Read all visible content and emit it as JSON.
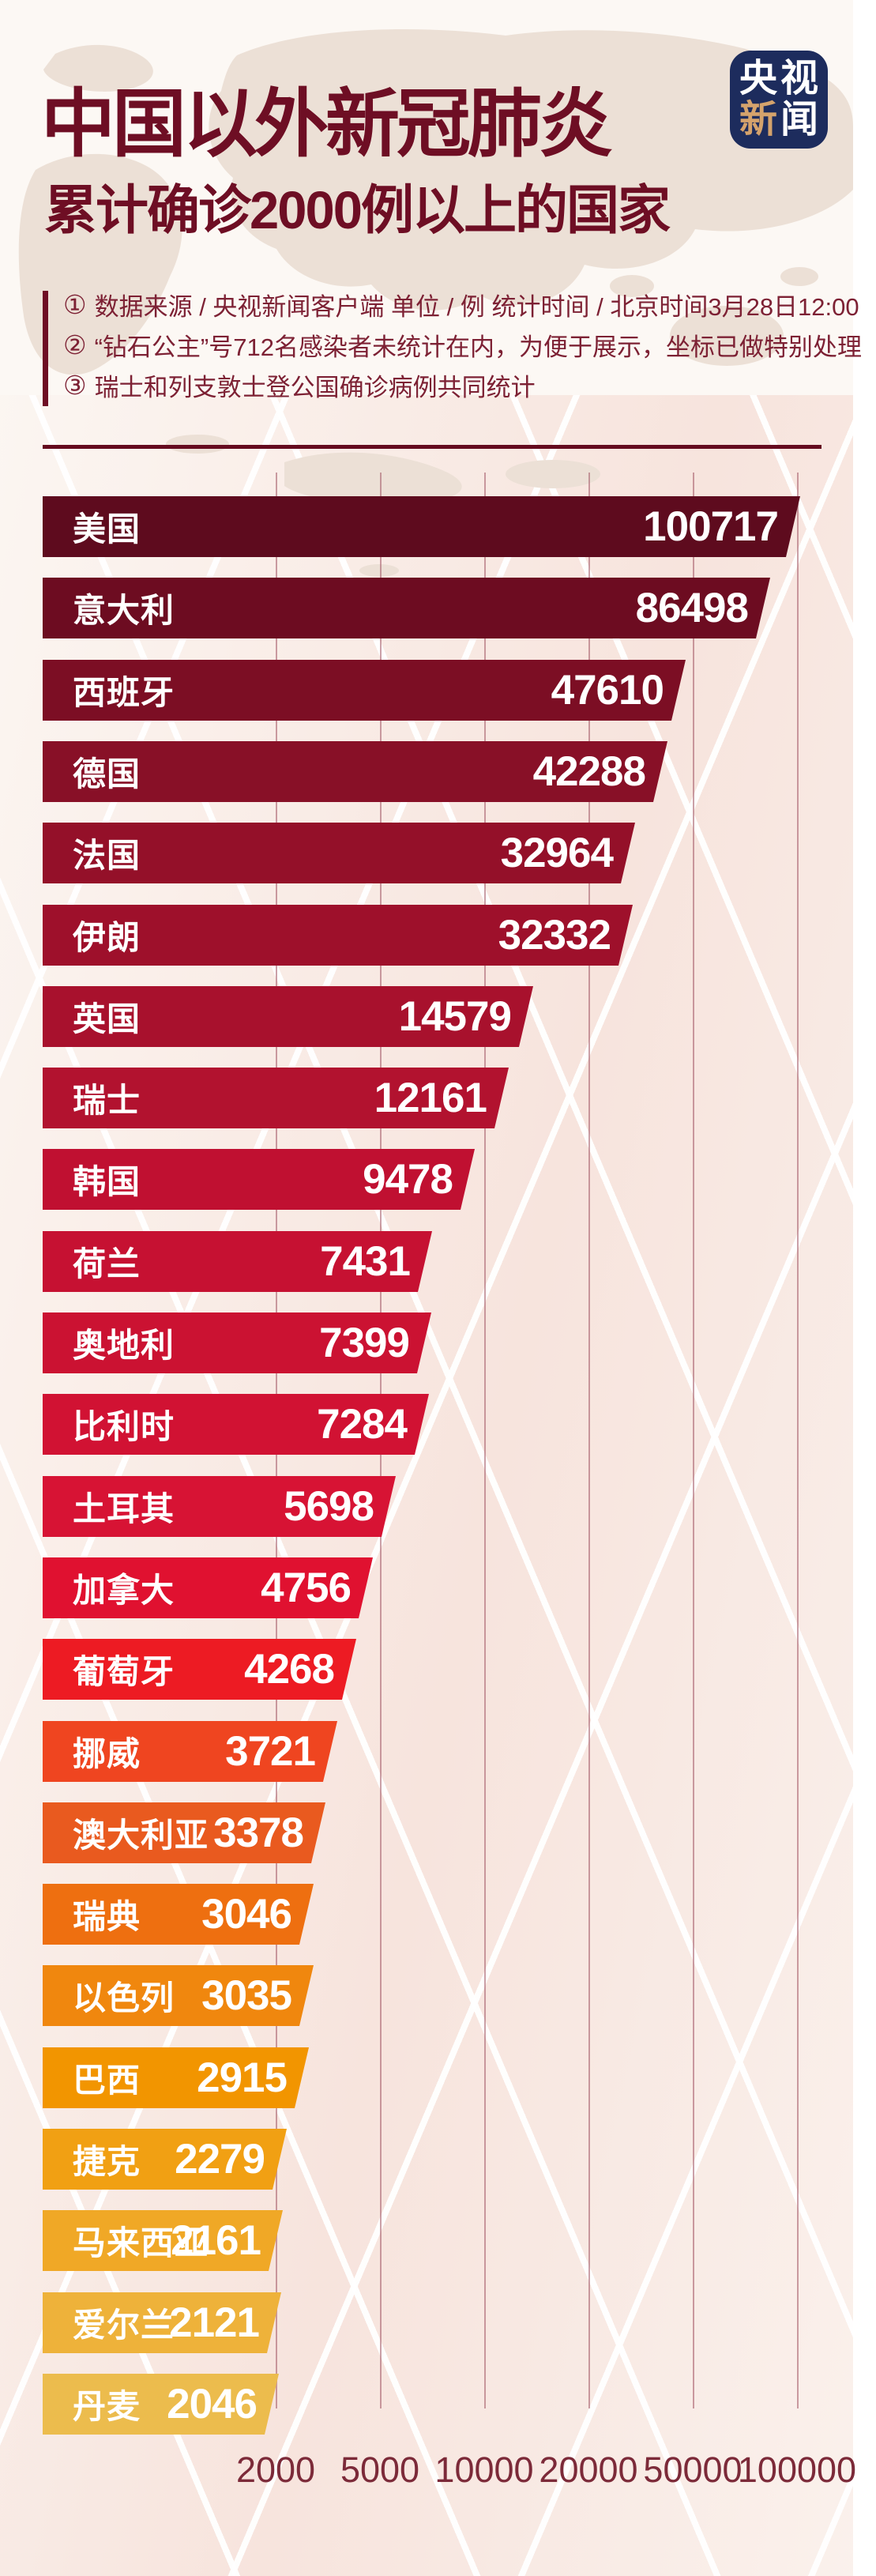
{
  "header": {
    "title_line1": "中国以外新冠肺炎",
    "title_line2": "累计确诊2000例以上的国家",
    "logo": {
      "name": "央视新闻",
      "chars": [
        "央",
        "视",
        "新",
        "闻"
      ],
      "accent_char_index": 2,
      "bg_color": "#1d2c5d",
      "accent_color": "#d5a36c"
    }
  },
  "notes": {
    "items": [
      {
        "marker": "①",
        "text": "数据来源 / 央视新闻客户端  单位 / 例   统计时间 / 北京时间3月28日12:00"
      },
      {
        "marker": "②",
        "text": "“钻石公主”号712名感染者未统计在内，为便于展示，坐标已做特别处理"
      },
      {
        "marker": "③",
        "text": "瑞士和列支敦士登公国确诊病例共同统计"
      }
    ]
  },
  "chart_data": {
    "type": "bar",
    "orientation": "horizontal",
    "title": "中国以外新冠肺炎累计确诊2000例以上的国家",
    "categories": [
      "美国",
      "意大利",
      "西班牙",
      "德国",
      "法国",
      "伊朗",
      "英国",
      "瑞士",
      "韩国",
      "荷兰",
      "奥地利",
      "比利时",
      "土耳其",
      "加拿大",
      "葡萄牙",
      "挪威",
      "澳大利亚",
      "瑞典",
      "以色列",
      "巴西",
      "捷克",
      "马来西亚",
      "爱尔兰",
      "丹麦"
    ],
    "values": [
      100717,
      86498,
      47610,
      42288,
      32964,
      32332,
      14579,
      12161,
      9478,
      7431,
      7399,
      7284,
      5698,
      4756,
      4268,
      3721,
      3378,
      3046,
      3035,
      2915,
      2279,
      2161,
      2121,
      2046
    ],
    "bar_colors": [
      "#5e0b1e",
      "#6d0c21",
      "#7c0e24",
      "#881027",
      "#941029",
      "#9e102b",
      "#a8112d",
      "#b2122f",
      "#c01031",
      "#c61132",
      "#cb1232",
      "#d11233",
      "#d71334",
      "#e01130",
      "#ed1b23",
      "#ef4520",
      "#e95a1f",
      "#ee6f10",
      "#f0870e",
      "#f29500",
      "#f1a013",
      "#f0a826",
      "#eeb23a",
      "#ecbc4d"
    ],
    "value_label_color": "#ffffff",
    "x_axis": {
      "ticks": [
        2000,
        5000,
        10000,
        20000,
        50000,
        100000
      ],
      "scale": "custom-equal-spaced-ticks",
      "note": "坐标已做特别处理",
      "tick_color": "#7c2a39"
    },
    "grid": true,
    "unit": "例"
  }
}
